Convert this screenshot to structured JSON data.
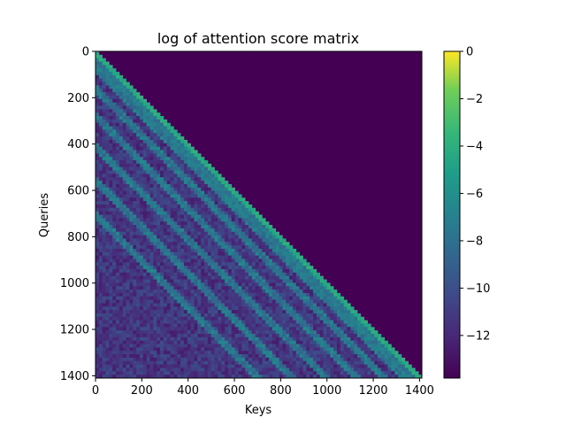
{
  "chart_data": {
    "type": "heatmap",
    "title": "log of attention score matrix",
    "xlabel": "Keys",
    "ylabel": "Queries",
    "n_rows": 1410,
    "n_cols": 1410,
    "mask": "causal lower-triangular (upper triangle at minimum value)",
    "colormap": "viridis",
    "xlim": [
      0,
      1410
    ],
    "ylim": [
      1410,
      0
    ],
    "x_ticks": [
      0,
      200,
      400,
      600,
      800,
      1000,
      1200,
      1400
    ],
    "y_ticks": [
      0,
      200,
      400,
      600,
      800,
      1000,
      1200,
      1400
    ],
    "x_tick_labels": [
      "0",
      "200",
      "400",
      "600",
      "800",
      "1000",
      "1200",
      "1400"
    ],
    "y_tick_labels": [
      "0",
      "200",
      "400",
      "600",
      "800",
      "1000",
      "1200",
      "1400"
    ],
    "colorbar": {
      "vmin": -13.8,
      "vmax": 0,
      "ticks": [
        0,
        -2,
        -4,
        -6,
        -8,
        -10,
        -12
      ],
      "tick_labels": [
        "0",
        "−2",
        "−4",
        "−6",
        "−8",
        "−10",
        "−12"
      ]
    },
    "diagonal_stripe_offsets": [
      80,
      160,
      280,
      410,
      560,
      700
    ],
    "colors": {
      "min": "#440154",
      "max": "#fde725"
    }
  }
}
